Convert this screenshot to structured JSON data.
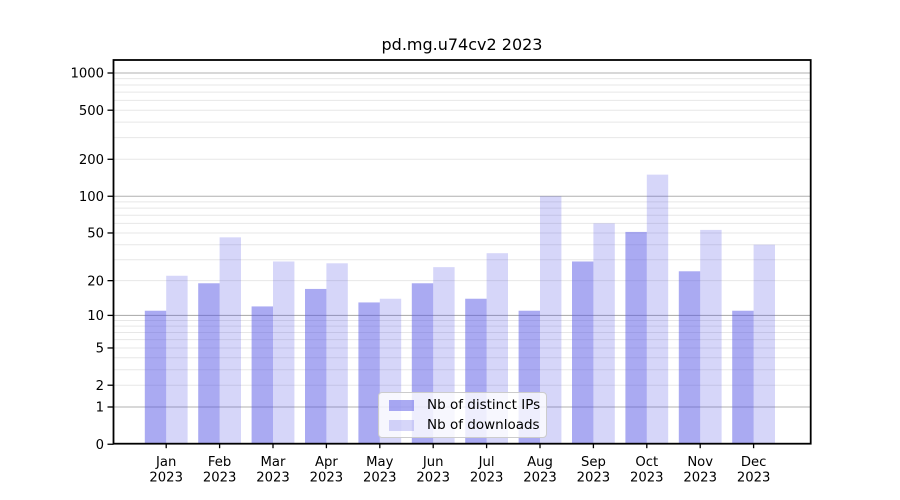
{
  "chart_data": {
    "type": "bar",
    "title": "pd.mg.u74cv2 2023",
    "categories": [
      "Jan",
      "Feb",
      "Mar",
      "Apr",
      "May",
      "Jun",
      "Jul",
      "Aug",
      "Sep",
      "Oct",
      "Nov",
      "Dec"
    ],
    "year": "2023",
    "series": [
      {
        "name": "Nb of distinct IPs",
        "color": "rgba(85,85,230,0.50)",
        "values": [
          11,
          19,
          12,
          17,
          13,
          19,
          14,
          11,
          29,
          51,
          24,
          11
        ]
      },
      {
        "name": "Nb of downloads",
        "color": "rgba(85,85,230,0.24)",
        "values": [
          22,
          46,
          29,
          28,
          14,
          26,
          34,
          100,
          60,
          150,
          53,
          40
        ]
      }
    ],
    "yscale": "log1p",
    "yticks": [
      0,
      1,
      2,
      5,
      10,
      20,
      50,
      100,
      200,
      500,
      1000
    ],
    "ylim": [
      0,
      1275
    ],
    "grid": "on",
    "grid_major_color": "#b0b0b0",
    "grid_minor_color": "#e7e7e7",
    "axis_color": "#000000",
    "legend_position": "lower center"
  }
}
